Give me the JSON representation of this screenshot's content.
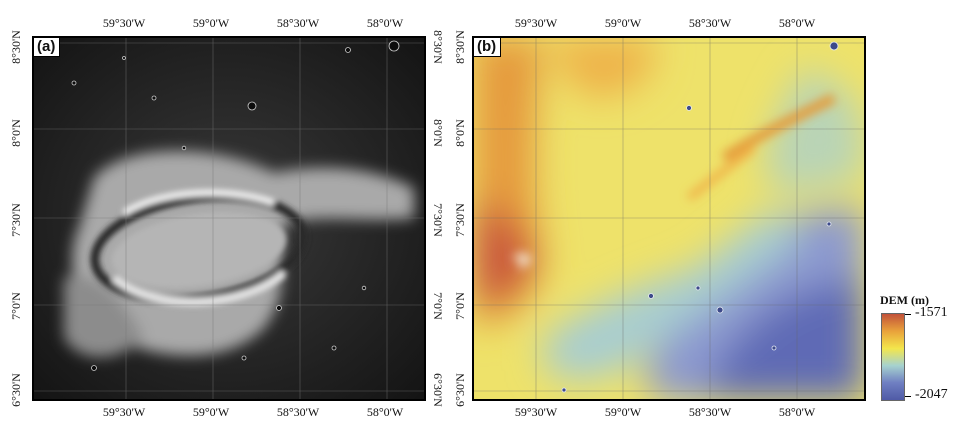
{
  "panels": [
    {
      "label": "(a)",
      "kind": "grayscale-image"
    },
    {
      "label": "(b)",
      "kind": "dem-colormap"
    }
  ],
  "longitude_ticks": [
    "59°30'W",
    "59°0'W",
    "58°30'W",
    "58°0'W"
  ],
  "latitude_ticks": [
    "8°30'N",
    "8°0'N",
    "7°30'N",
    "7°0'N",
    "6°30'N"
  ],
  "legend": {
    "title": "DEM (m)",
    "max_label": "-1571",
    "min_label": "-2047",
    "colors": [
      "#c2523a",
      "#e9a23b",
      "#f3e64c",
      "#a6d2cf",
      "#6f7fc2",
      "#4f5aa6"
    ]
  }
}
